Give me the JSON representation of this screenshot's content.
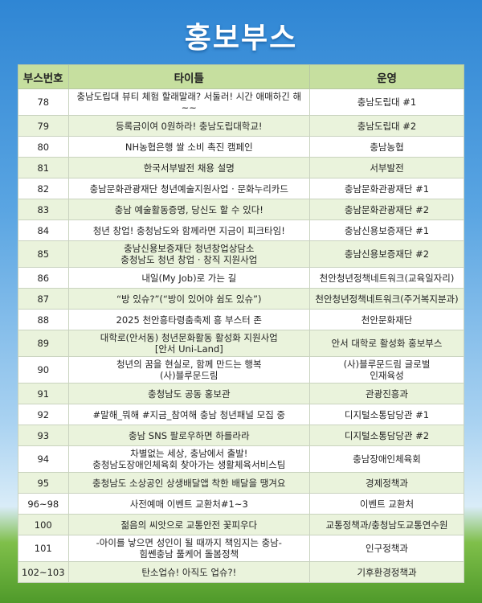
{
  "header": {
    "title": "홍보부스"
  },
  "table": {
    "columns": [
      "부스번호",
      "타이틀",
      "운영"
    ],
    "rows": [
      {
        "number": "78",
        "title": [
          "충남도립대 뷰티 체험 할래말래? 서둘러! 시간 애매하긴 해~~"
        ],
        "operator": [
          "충남도립대 #1"
        ]
      },
      {
        "number": "79",
        "title": [
          "등록금이여 0원하라! 충남도립대학교!"
        ],
        "operator": [
          "충남도립대 #2"
        ]
      },
      {
        "number": "80",
        "title": [
          "NH농협은행 쌀 소비 촉진 캠페인"
        ],
        "operator": [
          "충남농협"
        ]
      },
      {
        "number": "81",
        "title": [
          "한국서부발전 채용 설명"
        ],
        "operator": [
          "서부발전"
        ]
      },
      {
        "number": "82",
        "title": [
          "충남문화관광재단 청년예술지원사업 · 문화누리카드"
        ],
        "operator": [
          "충남문화관광재단 #1"
        ]
      },
      {
        "number": "83",
        "title": [
          "충남 예술활동증명, 당신도 할 수 있다!"
        ],
        "operator": [
          "충남문화관광재단 #2"
        ]
      },
      {
        "number": "84",
        "title": [
          "청년 창업! 충청남도와 함께라면 지금이 피크타임!"
        ],
        "operator": [
          "충남신용보증재단 #1"
        ]
      },
      {
        "number": "85",
        "title": [
          "충남신용보증재단 청년창업상담소",
          "충청남도 청년 창업 · 창직 지원사업"
        ],
        "operator": [
          "충남신용보증재단 #2"
        ]
      },
      {
        "number": "86",
        "title": [
          "내일(My Job)로 가는 길"
        ],
        "operator": [
          "천안청년정책네트워크(교육일자리)"
        ]
      },
      {
        "number": "87",
        "title": [
          "“방 있슈?”(“방이 있어야 쉼도 있슈”)"
        ],
        "operator": [
          "천안청년정책네트워크(주거복지분과)"
        ]
      },
      {
        "number": "88",
        "title": [
          "2025 천안흥타령춤축제 흥 부스터 존"
        ],
        "operator": [
          "천안문화재단"
        ]
      },
      {
        "number": "89",
        "title": [
          "대학로(안서동) 청년문화활동 활성화 지원사업",
          "[안서 Uni-Land]"
        ],
        "operator": [
          "안서 대학로 활성화 홍보부스"
        ]
      },
      {
        "number": "90",
        "title": [
          "청년의 꿈을 현실로, 함께 만드는 행복",
          "(사)블루문드림"
        ],
        "operator": [
          "(사)블루문드림 글로벌",
          "인재육성"
        ]
      },
      {
        "number": "91",
        "title": [
          "충청남도 공동 홍보관"
        ],
        "operator": [
          "관광진흥과"
        ]
      },
      {
        "number": "92",
        "title": [
          "#말해_뭐해 #지금_참여해 충남 청년패널 모집 중"
        ],
        "operator": [
          "디지털소통담당관 #1"
        ]
      },
      {
        "number": "93",
        "title": [
          "충남 SNS 팔로우하면 하를라라"
        ],
        "operator": [
          "디지털소통담당관 #2"
        ]
      },
      {
        "number": "94",
        "title": [
          "차별없는 세상, 충남에서 출발!",
          "충청남도장애인체육회 찾아가는 생활체육서비스팀"
        ],
        "operator": [
          "충남장애인체육회"
        ]
      },
      {
        "number": "95",
        "title": [
          "충청남도 소상공인 상생배달앱 착한 배달을 땡겨요"
        ],
        "operator": [
          "경제정책과"
        ]
      },
      {
        "number": "96~98",
        "title": [
          "사전예매 이벤트 교환처#1~3"
        ],
        "operator": [
          "이벤트 교환처"
        ]
      },
      {
        "number": "100",
        "title": [
          "젊음의 씨앗으로 교통안전 꽃피우다"
        ],
        "operator": [
          "교통정책과/충청남도교통연수원"
        ]
      },
      {
        "number": "101",
        "title": [
          "-아이를 낳으면 성인이 될 때까지 책임지는 충남-",
          "힘쎈충남 풀케어 돌봄정책"
        ],
        "operator": [
          "인구정책과"
        ]
      },
      {
        "number": "102~103",
        "title": [
          "탄소업슈! 아직도 업슈?!"
        ],
        "operator": [
          "기후환경정책과"
        ]
      }
    ]
  }
}
